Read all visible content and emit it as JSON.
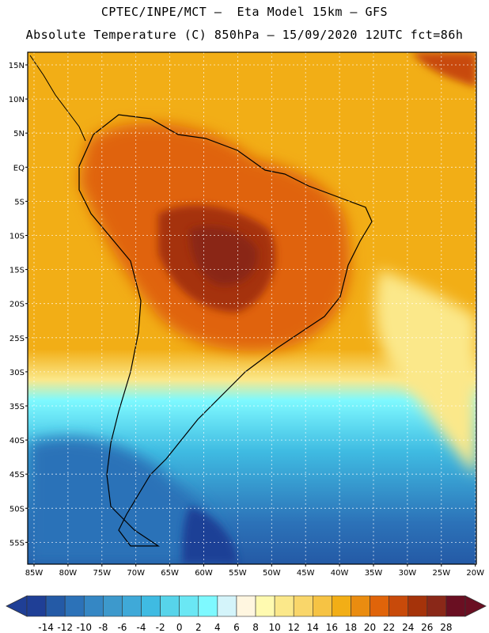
{
  "header": {
    "line1": "CPTEC/INPE/MCT –  Eta Model 15km – GFS",
    "line2": "Absolute Temperature (C) 850hPa – 15/09/2020 12UTC fct=86h"
  },
  "map": {
    "lat_labels": [
      "15N",
      "10N",
      "5N",
      "EQ",
      "5S",
      "10S",
      "15S",
      "20S",
      "25S",
      "30S",
      "35S",
      "40S",
      "45S",
      "50S",
      "55S"
    ],
    "lon_labels": [
      "85W",
      "80W",
      "75W",
      "70W",
      "65W",
      "60W",
      "55W",
      "50W",
      "45W",
      "40W",
      "35W",
      "30W",
      "25W",
      "20W"
    ],
    "ocean_color": "#f2ae16",
    "continent_core_color": "#9a330e"
  },
  "colorbar": {
    "levels": [
      "-14",
      "-12",
      "-10",
      "-8",
      "-6",
      "-4",
      "-2",
      "0",
      "2",
      "4",
      "6",
      "8",
      "10",
      "12",
      "14",
      "16",
      "18",
      "20",
      "22",
      "24",
      "26",
      "28"
    ],
    "colors": [
      "#1f3f96",
      "#245aa6",
      "#2c72b8",
      "#3587c4",
      "#3d99cc",
      "#3fa9d8",
      "#3fbbe2",
      "#57d4ea",
      "#6ae7f4",
      "#7ef9ff",
      "#d4f4fa",
      "#fff6e0",
      "#fffab0",
      "#fbe88a",
      "#f9d66a",
      "#f6c344",
      "#f2ae16",
      "#ea8c10",
      "#e0640a",
      "#c84a0a",
      "#a5330a",
      "#8a2818",
      "#6a0f22"
    ]
  }
}
